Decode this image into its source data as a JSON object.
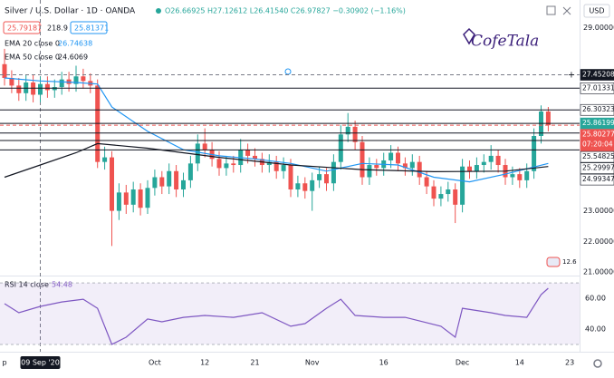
{
  "header": {
    "title": "Silver / U.S. Dollar · 1D · OANDA",
    "ohlc": "O26.66925 H27.12612 L26.41540 C26.97827 −0.30902 (−1.16%)",
    "bid": 25.79187,
    "spread": 218.9,
    "ask": 25.81371,
    "currency": "USD",
    "logo": "CofeTala",
    "badge": 12.6
  },
  "chart_data": [
    {
      "type": "candlestick",
      "categories": [
        "p",
        null,
        null,
        null,
        null,
        "09 Sep '20",
        null,
        null,
        null,
        null,
        null,
        null,
        null,
        null,
        null,
        null,
        null,
        null,
        null,
        null,
        null,
        "Oct",
        null,
        null,
        null,
        null,
        null,
        null,
        "12",
        null,
        null,
        null,
        null,
        null,
        null,
        "21",
        null,
        null,
        null,
        null,
        null,
        null,
        null,
        "Nov",
        null,
        null,
        null,
        null,
        null,
        null,
        null,
        null,
        null,
        "16",
        null,
        null,
        null,
        null,
        null,
        null,
        null,
        null,
        null,
        null,
        "Dec",
        null,
        null,
        null,
        null,
        null,
        null,
        null,
        "14",
        null,
        null,
        null,
        null,
        null,
        null,
        "23"
      ],
      "open": [
        27.8,
        27.35,
        27.1,
        26.85,
        27.2,
        26.8,
        27.15,
        26.95,
        27.05,
        27.3,
        27.15,
        27.4,
        27.25,
        27.1,
        24.6,
        24.75,
        23.0,
        23.6,
        23.2,
        23.7,
        23.1,
        23.75,
        24.1,
        23.8,
        24.3,
        23.7,
        24.0,
        24.55,
        25.2,
        25.0,
        24.7,
        24.4,
        24.55,
        24.5,
        25.0,
        24.8,
        24.7,
        24.5,
        24.6,
        24.3,
        24.5,
        23.7,
        23.9,
        23.65,
        24.0,
        24.2,
        23.9,
        24.6,
        25.5,
        25.75,
        25.25,
        24.1,
        24.5,
        24.4,
        24.65,
        24.9,
        24.55,
        24.4,
        24.6,
        24.1,
        23.8,
        23.4,
        23.55,
        23.7,
        23.2,
        24.45,
        24.3,
        24.5,
        24.6,
        24.8,
        24.5,
        24.1,
        24.2,
        24.0,
        24.3,
        25.45,
        26.25,
        null,
        null,
        null
      ],
      "high": [
        28.3,
        27.6,
        27.35,
        27.45,
        27.45,
        27.4,
        27.4,
        27.3,
        27.55,
        27.55,
        27.75,
        27.65,
        27.5,
        27.3,
        25.1,
        24.95,
        23.9,
        23.85,
        23.95,
        23.9,
        24.0,
        24.35,
        24.3,
        24.55,
        24.5,
        24.25,
        24.8,
        25.5,
        25.7,
        25.25,
        24.95,
        24.8,
        24.8,
        25.35,
        25.2,
        25.05,
        24.9,
        24.85,
        24.8,
        24.75,
        24.7,
        24.15,
        24.1,
        24.25,
        24.45,
        24.4,
        24.85,
        25.8,
        26.2,
        25.95,
        25.45,
        24.75,
        24.7,
        24.9,
        25.15,
        25.1,
        24.75,
        24.85,
        24.8,
        24.3,
        24.0,
        23.8,
        23.95,
        23.9,
        24.7,
        24.65,
        24.75,
        24.85,
        25.15,
        25.0,
        24.7,
        24.45,
        24.4,
        24.55,
        25.7,
        26.45,
        26.4,
        null,
        null,
        null
      ],
      "low": [
        27.1,
        26.85,
        26.6,
        26.6,
        26.55,
        26.55,
        26.7,
        26.7,
        26.8,
        26.9,
        26.9,
        27.0,
        26.85,
        24.4,
        24.35,
        21.85,
        22.7,
        22.9,
        22.95,
        22.85,
        22.9,
        23.5,
        23.55,
        23.55,
        23.45,
        23.45,
        23.75,
        24.3,
        24.75,
        24.45,
        24.15,
        24.15,
        24.25,
        24.25,
        24.55,
        24.45,
        24.25,
        24.25,
        24.05,
        24.05,
        23.45,
        23.45,
        23.4,
        23.0,
        23.75,
        23.65,
        23.65,
        24.35,
        25.25,
        25.0,
        23.85,
        23.85,
        24.15,
        24.15,
        24.4,
        24.3,
        24.15,
        24.15,
        23.85,
        23.55,
        23.15,
        23.15,
        23.3,
        22.6,
        22.95,
        24.05,
        24.05,
        24.25,
        24.35,
        24.25,
        23.85,
        23.85,
        23.75,
        23.75,
        24.05,
        25.2,
        25.6,
        null,
        null,
        null
      ],
      "close": [
        27.35,
        27.1,
        26.85,
        27.2,
        26.8,
        27.15,
        26.95,
        27.05,
        27.3,
        27.15,
        27.4,
        27.25,
        27.1,
        24.6,
        24.75,
        23.0,
        23.6,
        23.2,
        23.7,
        23.1,
        23.75,
        24.1,
        23.8,
        24.3,
        23.7,
        24.0,
        24.55,
        25.2,
        25.0,
        24.7,
        24.4,
        24.55,
        24.5,
        25.0,
        24.8,
        24.7,
        24.5,
        24.6,
        24.3,
        24.5,
        23.7,
        23.9,
        23.65,
        24.0,
        24.2,
        23.9,
        24.6,
        25.5,
        25.75,
        25.25,
        24.1,
        24.5,
        24.4,
        24.65,
        24.9,
        24.55,
        24.4,
        24.6,
        24.1,
        23.8,
        23.4,
        23.55,
        23.7,
        23.2,
        24.45,
        24.3,
        24.5,
        24.6,
        24.8,
        24.5,
        24.1,
        24.2,
        24.0,
        24.3,
        25.45,
        26.25,
        25.8,
        null,
        null,
        null
      ],
      "up_color": "#26a69a",
      "down_color": "#ef5350",
      "ylim": [
        21,
        29.9
      ],
      "yticks": [
        {
          "value": 29,
          "label": "29.00000"
        },
        {
          "value": 23,
          "label": "23.00000"
        },
        {
          "value": 22,
          "label": "22.00000"
        },
        {
          "value": 21,
          "label": "21.00000"
        }
      ],
      "series": [
        {
          "name": "EMA 20 close 0",
          "legend_value": 26.74638,
          "color": "#2196f3",
          "x": [
            0,
            5,
            10,
            13,
            15,
            20,
            25,
            30,
            35,
            40,
            45,
            50,
            55,
            60,
            65,
            70,
            76
          ],
          "values": [
            27.35,
            27.25,
            27.2,
            27.15,
            26.4,
            25.6,
            25.0,
            24.8,
            24.7,
            24.55,
            24.3,
            24.55,
            24.5,
            24.1,
            23.95,
            24.2,
            24.55
          ]
        },
        {
          "name": "EMA 50 close 0",
          "legend_value": 24.6069,
          "color": "#131722",
          "x": [
            0,
            5,
            10,
            13,
            20,
            30,
            40,
            50,
            60,
            70,
            76
          ],
          "values": [
            24.1,
            24.5,
            24.9,
            25.2,
            25.05,
            24.75,
            24.5,
            24.35,
            24.28,
            24.3,
            24.45
          ]
        }
      ],
      "price_lines": [
        {
          "value": 27.45208,
          "color": "#787b86",
          "dashed": true,
          "bg": "#131722",
          "fg": "#ffffff"
        },
        {
          "value": 27.01331,
          "color": "#131722",
          "bg": "#ffffff",
          "fg": "#131722"
        },
        {
          "value": 26.30323,
          "color": "#131722",
          "bg": "#ffffff",
          "fg": "#131722"
        },
        {
          "value": 25.86199,
          "color": "#131722",
          "bg": "#26a69a",
          "fg": "#ffffff"
        },
        {
          "value": 25.80277,
          "color": "#ef5350",
          "dashed": true,
          "bg": "#ef5350",
          "fg": "#ffffff",
          "countdown": "07:20:04"
        },
        {
          "value": 25.54825,
          "color": "#131722",
          "bg": "#ffffff",
          "fg": "#131722"
        },
        {
          "value": 25.29997,
          "color": "#131722",
          "bg": "#ffffff",
          "fg": "#131722"
        },
        {
          "value": 24.99347,
          "color": "#131722",
          "bg": "#ffffff",
          "fg": "#131722"
        }
      ],
      "crosshair": {
        "category_index": 5
      }
    },
    {
      "type": "line",
      "series": [
        {
          "name": "RSI 14 close",
          "legend_value": 54.48,
          "color": "#7e57c2",
          "x": [
            0,
            2,
            5,
            8,
            11,
            13,
            15,
            17,
            20,
            22,
            25,
            28,
            32,
            36,
            40,
            42,
            45,
            47,
            49,
            53,
            56,
            61,
            63,
            64,
            68,
            70,
            73,
            75,
            76
          ],
          "values": [
            56.5,
            50.6,
            54.7,
            57.6,
            59.4,
            53.5,
            30.0,
            34.7,
            46.5,
            44.7,
            47.6,
            48.8,
            47.6,
            50.6,
            41.8,
            43.5,
            53.5,
            59.4,
            48.8,
            47.6,
            47.6,
            41.8,
            34.7,
            53.5,
            50.6,
            48.8,
            47.6,
            62.4,
            66.5
          ]
        }
      ],
      "band": [
        30,
        70
      ],
      "ylim": [
        28.2,
        72.4
      ],
      "yticks": [
        {
          "value": 60,
          "label": "60.00"
        },
        {
          "value": 40,
          "label": "40.00"
        }
      ]
    }
  ]
}
